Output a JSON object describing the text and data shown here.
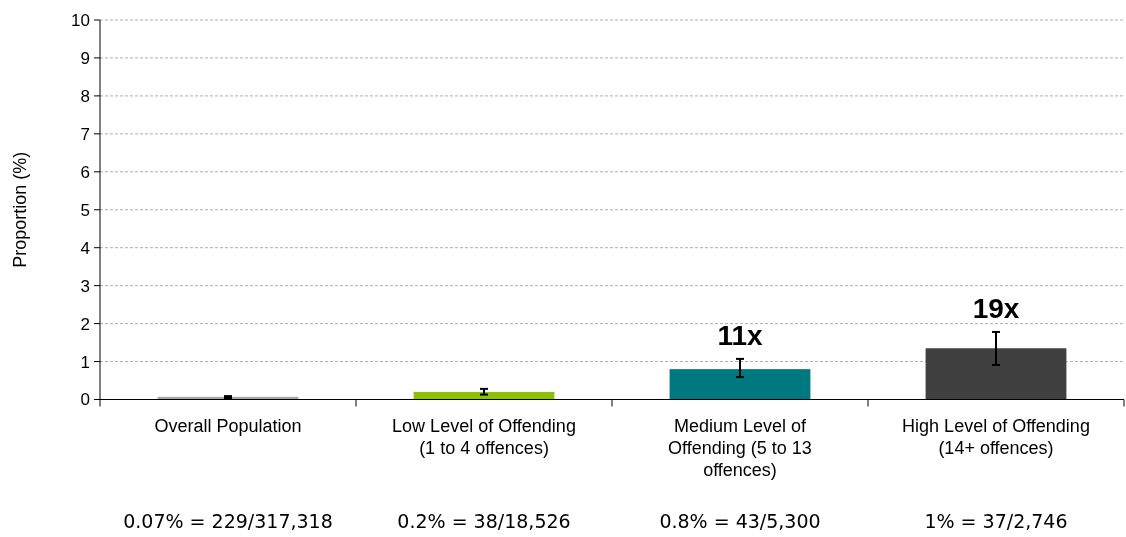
{
  "chart_data": {
    "type": "bar",
    "ylabel": "Proportion (%)",
    "categories": [
      "Overall Population",
      "Low Level of Offending (1 to 4 offences)",
      "Medium Level of Offending (5 to 13 offences)",
      "High Level of Offending (14+ offences)"
    ],
    "values": [
      0.07,
      0.2,
      0.8,
      1.35
    ],
    "colors": [
      "#a6a6a6",
      "#8cc10a",
      "#00787f",
      "#404040"
    ],
    "errors": [
      [
        0.04,
        0.09
      ],
      [
        0.13,
        0.28
      ],
      [
        0.59,
        1.07
      ],
      [
        0.91,
        1.78
      ]
    ],
    "ylim": [
      0,
      10
    ],
    "yticks": [
      0,
      1,
      2,
      3,
      4,
      5,
      6,
      7,
      8,
      9,
      10
    ],
    "grid": "y",
    "annotations": [
      {
        "text": "11x",
        "x": "Medium Level of Offending (5 to 13 offences)",
        "y": 1.07
      },
      {
        "text": "19x",
        "x": "High Level of Offending (14+ offences)",
        "y": 1.78
      },
      "0.07% = 229/317,318",
      "0.2% = 38/18,526",
      "0.8% = 43/5,300",
      "1% = 37/2,746"
    ]
  }
}
